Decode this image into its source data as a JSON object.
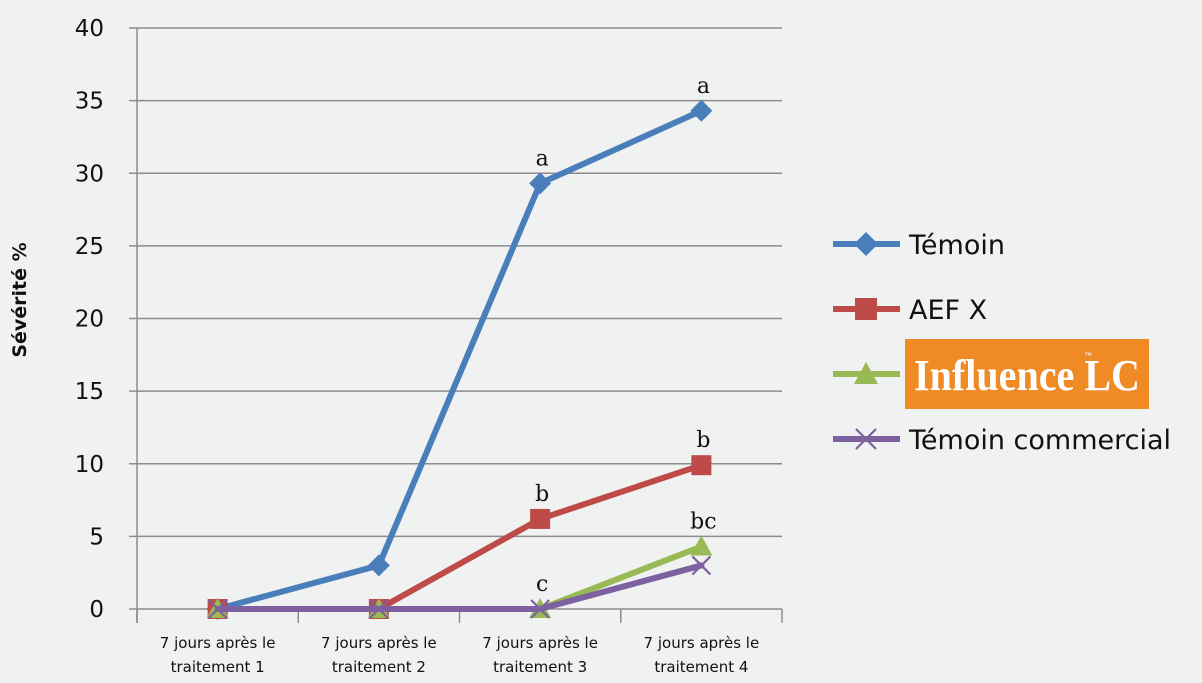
{
  "chart_data": {
    "type": "line",
    "ylabel": "Sévérité  %",
    "xlabel": "",
    "ylim": [
      0,
      40
    ],
    "yticks": [
      0,
      5,
      10,
      15,
      20,
      25,
      30,
      35,
      40
    ],
    "grid": true,
    "legend_position": "right",
    "categories": [
      [
        "7 jours après le",
        "traitement 1"
      ],
      [
        "7 jours après le",
        "traitement 2"
      ],
      [
        "7 jours après le",
        "traitement 3"
      ],
      [
        "7 jours après le",
        "traitement 4"
      ]
    ],
    "series": [
      {
        "name": "Témoin",
        "values": [
          0,
          3,
          29.3,
          34.3
        ],
        "color": "#4a7ebb",
        "marker": "diamond"
      },
      {
        "name": "AEF X",
        "values": [
          0,
          0,
          6.2,
          9.9
        ],
        "color": "#be4b48",
        "marker": "square"
      },
      {
        "name": "Influence LC",
        "values": [
          0,
          0,
          0,
          4.3
        ],
        "color": "#98b954",
        "marker": "triangle",
        "legend_logo": {
          "text": "Influence",
          "tm": "™",
          "suffix": "LC",
          "background": "#f08a24"
        }
      },
      {
        "name": "Témoin commercial",
        "values": [
          0,
          0,
          0,
          3
        ],
        "color": "#7d60a0",
        "marker": "x"
      }
    ],
    "annotations": [
      {
        "text": "a",
        "category": 3,
        "y": 29.3
      },
      {
        "text": "a",
        "category": 4,
        "y": 34.3
      },
      {
        "text": "b",
        "category": 3,
        "y": 6.2
      },
      {
        "text": "b",
        "category": 4,
        "y": 9.9
      },
      {
        "text": "c",
        "category": 3,
        "y": 0
      },
      {
        "text": "bc",
        "category": 4,
        "y": 4.3
      }
    ]
  }
}
